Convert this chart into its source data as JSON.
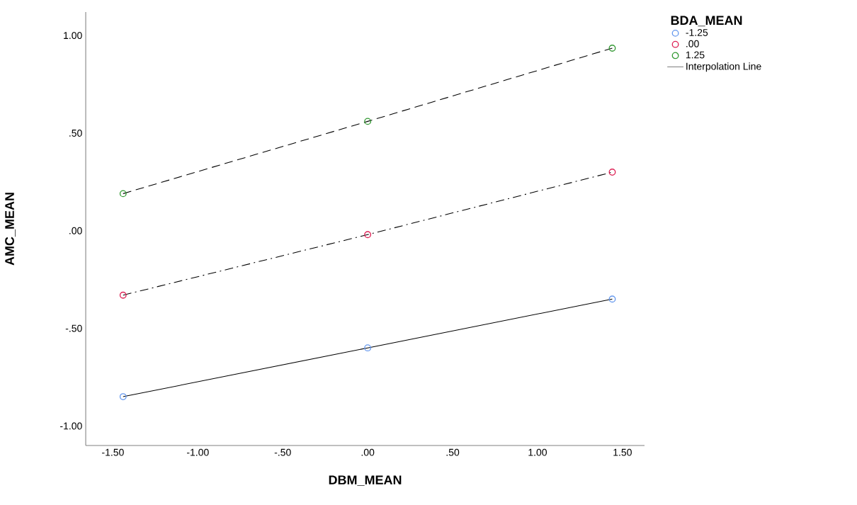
{
  "chart_data": {
    "type": "line",
    "xlabel": "DBM_MEAN",
    "ylabel": "AMC_MEAN",
    "legend_title": "BDA_MEAN",
    "annotations": [
      "Interpolation Line"
    ],
    "x": [
      -1.44,
      0,
      1.44
    ],
    "series": [
      {
        "name": "-1.25",
        "color": "#6699ee",
        "line_style": "solid",
        "values": [
          -0.85,
          -0.6,
          -0.35
        ]
      },
      {
        "name": ".00",
        "color": "#dd2255",
        "line_style": "dashdot",
        "values": [
          -0.33,
          -0.02,
          0.3
        ]
      },
      {
        "name": "1.25",
        "color": "#339933",
        "line_style": "dashed",
        "values": [
          0.19,
          0.56,
          0.935
        ]
      }
    ],
    "marker": "circle",
    "legend": "right",
    "grid": false,
    "xlim": [
      -1.66,
      1.63
    ],
    "ylim": [
      -1.1,
      1.12
    ],
    "xticks": [
      {
        "value": -1.5,
        "label": "-1.50"
      },
      {
        "value": -1.0,
        "label": "-1.00"
      },
      {
        "value": -0.5,
        "label": "-.50"
      },
      {
        "value": 0,
        "label": ".00"
      },
      {
        "value": 0.5,
        "label": ".50"
      },
      {
        "value": 1.0,
        "label": "1.00"
      },
      {
        "value": 1.5,
        "label": "1.50"
      }
    ],
    "yticks": [
      {
        "value": -1.0,
        "label": "-1.00"
      },
      {
        "value": -0.5,
        "label": "-.50"
      },
      {
        "value": 0,
        "label": ".00"
      },
      {
        "value": 0.5,
        "label": ".50"
      },
      {
        "value": 1.0,
        "label": "1.00"
      }
    ]
  }
}
